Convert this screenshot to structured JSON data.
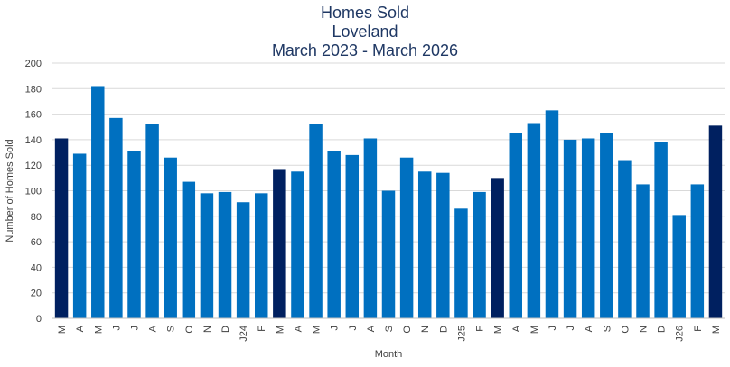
{
  "chart_data": {
    "type": "bar",
    "title": "Homes Sold",
    "subtitle_lines": [
      "Loveland",
      "March 2023 - March 2026"
    ],
    "xlabel": "Month",
    "ylabel": "Number of Homes Sold",
    "ylim": [
      0,
      200
    ],
    "yticks": [
      0,
      20,
      40,
      60,
      80,
      100,
      120,
      140,
      160,
      180,
      200
    ],
    "grid": true,
    "legend": "none",
    "categories": [
      "M",
      "A",
      "M",
      "J",
      "J",
      "A",
      "S",
      "O",
      "N",
      "D",
      "J24",
      "F",
      "M",
      "A",
      "M",
      "J",
      "J",
      "A",
      "S",
      "O",
      "N",
      "D",
      "J25",
      "F",
      "M",
      "A",
      "M",
      "J",
      "J",
      "A",
      "S",
      "O",
      "N",
      "D",
      "J26",
      "F",
      "M"
    ],
    "values": [
      141,
      129,
      182,
      157,
      131,
      152,
      126,
      107,
      98,
      99,
      91,
      98,
      117,
      115,
      152,
      131,
      128,
      141,
      100,
      126,
      115,
      114,
      86,
      99,
      110,
      145,
      153,
      163,
      140,
      141,
      145,
      124,
      105,
      138,
      81,
      105,
      151
    ],
    "highlight_indices": [
      0,
      12,
      24,
      36
    ],
    "colors": {
      "bar": "#0070c0",
      "highlight": "#002060",
      "grid": "#d9d9d9",
      "title": "#1f3864"
    }
  }
}
